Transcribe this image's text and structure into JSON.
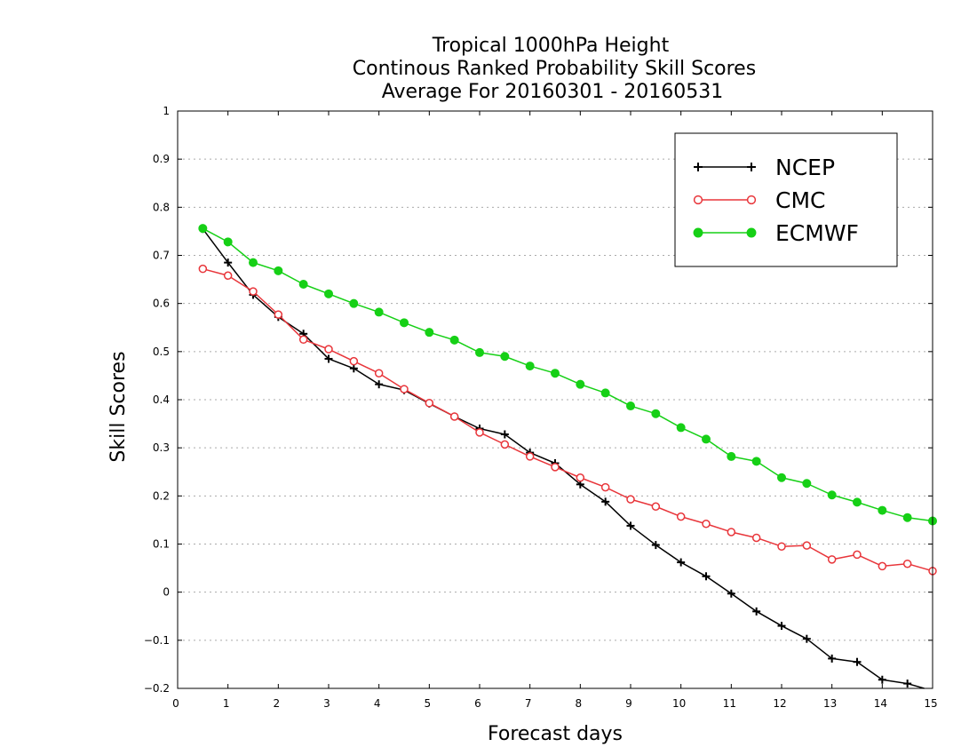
{
  "chart_data": {
    "type": "line",
    "title": [
      "Tropical 1000hPa Height",
      "Continous Ranked Probability Skill Scores",
      "Average For 20160301 - 20160531"
    ],
    "xlabel": "Forecast days",
    "ylabel": "Skill Scores",
    "xlim": [
      0,
      15
    ],
    "ylim": [
      -0.2,
      1
    ],
    "xticks": [
      0,
      1,
      2,
      3,
      4,
      5,
      6,
      7,
      8,
      9,
      10,
      11,
      12,
      13,
      14,
      15
    ],
    "yticks": [
      -0.2,
      -0.1,
      0,
      0.1,
      0.2,
      0.3,
      0.4,
      0.5,
      0.6,
      0.7,
      0.8,
      0.9,
      1
    ],
    "grid": "horizontal-dotted",
    "legend_position": "top-right",
    "x": [
      0.5,
      1,
      1.5,
      2,
      2.5,
      3,
      3.5,
      4,
      4.5,
      5,
      5.5,
      6,
      6.5,
      7,
      7.5,
      8,
      8.5,
      9,
      9.5,
      10,
      10.5,
      11,
      11.5,
      12,
      12.5,
      13,
      13.5,
      14,
      14.5,
      15
    ],
    "series": [
      {
        "name": "NCEP",
        "color": "#000000",
        "marker": "plus",
        "values": [
          0.755,
          0.685,
          0.618,
          0.572,
          0.537,
          0.485,
          0.465,
          0.432,
          0.42,
          0.392,
          0.365,
          0.34,
          0.328,
          0.29,
          0.268,
          0.224,
          0.188,
          0.138,
          0.098,
          0.062,
          0.033,
          -0.003,
          -0.04,
          -0.07,
          -0.097,
          -0.138,
          -0.145,
          -0.182,
          -0.19,
          -0.205
        ]
      },
      {
        "name": "CMC",
        "color": "#e8353a",
        "marker": "open-circle",
        "values": [
          0.672,
          0.658,
          0.625,
          0.577,
          0.525,
          0.505,
          0.48,
          0.455,
          0.422,
          0.393,
          0.365,
          0.332,
          0.307,
          0.282,
          0.26,
          0.238,
          0.218,
          0.193,
          0.178,
          0.157,
          0.142,
          0.125,
          0.113,
          0.095,
          0.097,
          0.068,
          0.078,
          0.054,
          0.059,
          0.044
        ]
      },
      {
        "name": "ECMWF",
        "color": "#16d016",
        "marker": "filled-circle",
        "values": [
          0.756,
          0.728,
          0.685,
          0.668,
          0.64,
          0.62,
          0.6,
          0.582,
          0.56,
          0.54,
          0.524,
          0.498,
          0.49,
          0.47,
          0.455,
          0.432,
          0.414,
          0.387,
          0.371,
          0.342,
          0.318,
          0.282,
          0.272,
          0.238,
          0.226,
          0.202,
          0.187,
          0.17,
          0.155,
          0.148
        ]
      }
    ]
  }
}
